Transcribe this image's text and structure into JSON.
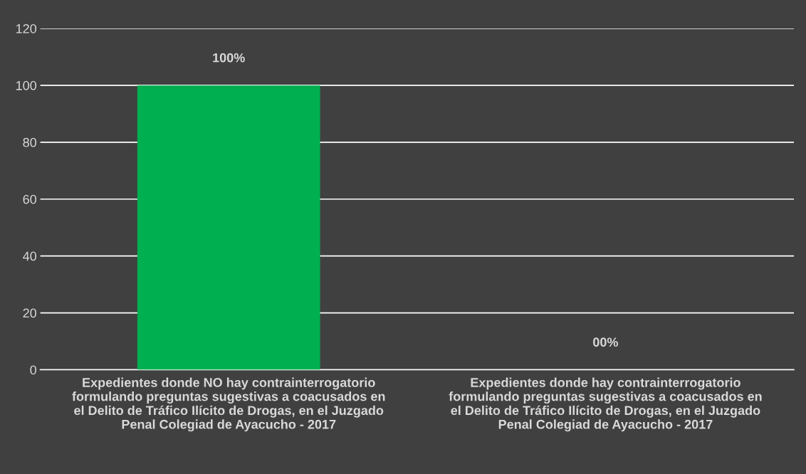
{
  "chart_data": {
    "type": "bar",
    "categories": [
      "Expedientes donde NO hay contrainterrogatorio\nformulando preguntas sugestivas a coacusados en\nel Delito de Tráfico Ilícito de Drogas, en el Juzgado\nPenal Colegiad de Ayacucho - 2017",
      "Expedientes donde hay contrainterrogatorio\nformulando preguntas sugestivas a coacusados en\nel Delito de Tráfico Ilícito de Drogas, en el Juzgado\nPenal Colegiad de Ayacucho - 2017"
    ],
    "values": [
      100,
      0
    ],
    "value_labels": [
      "100%",
      "00%"
    ],
    "color": "#00b050",
    "ylim": [
      0,
      120
    ],
    "yticks": [
      0,
      20,
      40,
      60,
      80,
      100,
      120
    ],
    "grid": "y",
    "legend": false
  }
}
